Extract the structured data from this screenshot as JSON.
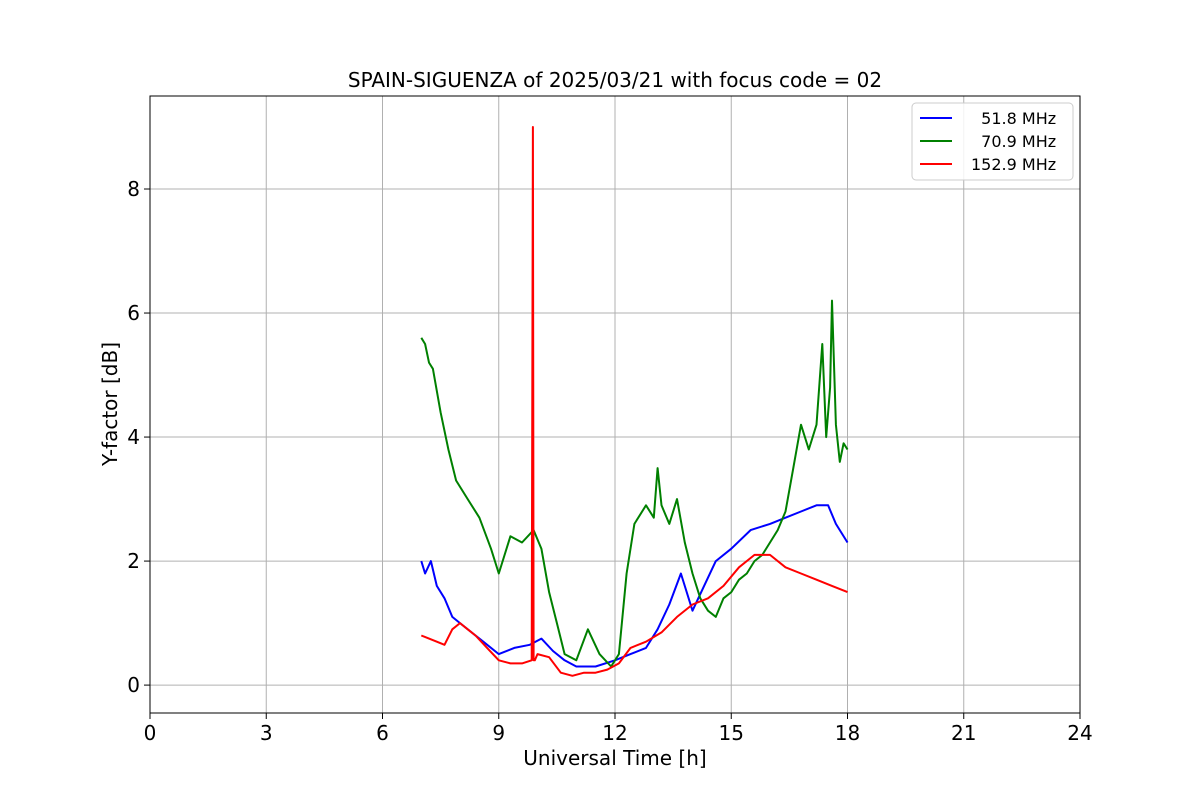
{
  "chart_data": {
    "type": "line",
    "title": "SPAIN-SIGUENZA of 2025/03/21 with focus code = 02",
    "xlabel": "Universal Time [h]",
    "ylabel": "Y-factor [dB]",
    "xlim": [
      0,
      24
    ],
    "ylim": [
      -0.45,
      9.5
    ],
    "xticks": [
      0,
      3,
      6,
      9,
      12,
      15,
      18,
      21,
      24
    ],
    "yticks": [
      0,
      2,
      4,
      6,
      8
    ],
    "grid": true,
    "legend_position": "top-right",
    "series": [
      {
        "name": "  51.8 MHz",
        "color": "#0000ff",
        "x": [
          7.0,
          7.1,
          7.25,
          7.4,
          7.6,
          7.8,
          8.0,
          8.3,
          8.6,
          9.0,
          9.4,
          9.8,
          10.1,
          10.4,
          10.7,
          11.0,
          11.5,
          12.0,
          12.4,
          12.8,
          13.1,
          13.4,
          13.7,
          14.0,
          14.3,
          14.6,
          15.0,
          15.5,
          16.0,
          16.4,
          16.8,
          17.2,
          17.5,
          17.7,
          18.0
        ],
        "y": [
          2.0,
          1.8,
          2.0,
          1.6,
          1.4,
          1.1,
          1.0,
          0.85,
          0.7,
          0.5,
          0.6,
          0.65,
          0.75,
          0.55,
          0.4,
          0.3,
          0.3,
          0.4,
          0.5,
          0.6,
          0.9,
          1.3,
          1.8,
          1.2,
          1.6,
          2.0,
          2.2,
          2.5,
          2.6,
          2.7,
          2.8,
          2.9,
          2.9,
          2.6,
          2.3
        ]
      },
      {
        "name": "  70.9 MHz",
        "color": "#008000",
        "x": [
          7.0,
          7.1,
          7.2,
          7.3,
          7.5,
          7.7,
          7.9,
          8.2,
          8.5,
          8.8,
          9.0,
          9.3,
          9.6,
          9.9,
          10.1,
          10.3,
          10.5,
          10.7,
          11.0,
          11.3,
          11.6,
          11.9,
          12.1,
          12.3,
          12.5,
          12.8,
          13.0,
          13.1,
          13.2,
          13.4,
          13.6,
          13.8,
          14.0,
          14.2,
          14.4,
          14.6,
          14.8,
          15.0,
          15.2,
          15.4,
          15.6,
          15.8,
          16.0,
          16.2,
          16.4,
          16.6,
          16.8,
          17.0,
          17.2,
          17.35,
          17.45,
          17.55,
          17.6,
          17.7,
          17.8,
          17.9,
          18.0
        ],
        "y": [
          5.6,
          5.5,
          5.2,
          5.1,
          4.4,
          3.8,
          3.3,
          3.0,
          2.7,
          2.2,
          1.8,
          2.4,
          2.3,
          2.5,
          2.2,
          1.5,
          1.0,
          0.5,
          0.4,
          0.9,
          0.5,
          0.3,
          0.5,
          1.8,
          2.6,
          2.9,
          2.7,
          3.5,
          2.9,
          2.6,
          3.0,
          2.3,
          1.8,
          1.4,
          1.2,
          1.1,
          1.4,
          1.5,
          1.7,
          1.8,
          2.0,
          2.1,
          2.3,
          2.5,
          2.8,
          3.5,
          4.2,
          3.8,
          4.2,
          5.5,
          4.0,
          4.8,
          6.2,
          4.2,
          3.6,
          3.9,
          3.8
        ]
      },
      {
        "name": "152.9 MHz",
        "color": "#ff0000",
        "x": [
          7.0,
          7.2,
          7.4,
          7.6,
          7.8,
          8.0,
          8.2,
          8.4,
          8.7,
          9.0,
          9.3,
          9.6,
          9.85,
          9.88,
          9.9,
          9.93,
          10.0,
          10.3,
          10.6,
          10.9,
          11.2,
          11.5,
          11.8,
          12.1,
          12.4,
          12.8,
          13.2,
          13.6,
          14.0,
          14.4,
          14.8,
          15.2,
          15.6,
          16.0,
          16.4,
          16.8,
          17.2,
          17.6,
          18.0
        ],
        "y": [
          0.8,
          0.75,
          0.7,
          0.65,
          0.9,
          1.0,
          0.9,
          0.8,
          0.6,
          0.4,
          0.35,
          0.35,
          0.4,
          9.0,
          0.4,
          0.4,
          0.5,
          0.45,
          0.2,
          0.15,
          0.2,
          0.2,
          0.25,
          0.35,
          0.6,
          0.7,
          0.85,
          1.1,
          1.3,
          1.4,
          1.6,
          1.9,
          2.1,
          2.1,
          1.9,
          1.8,
          1.7,
          1.6,
          1.5
        ]
      }
    ]
  }
}
